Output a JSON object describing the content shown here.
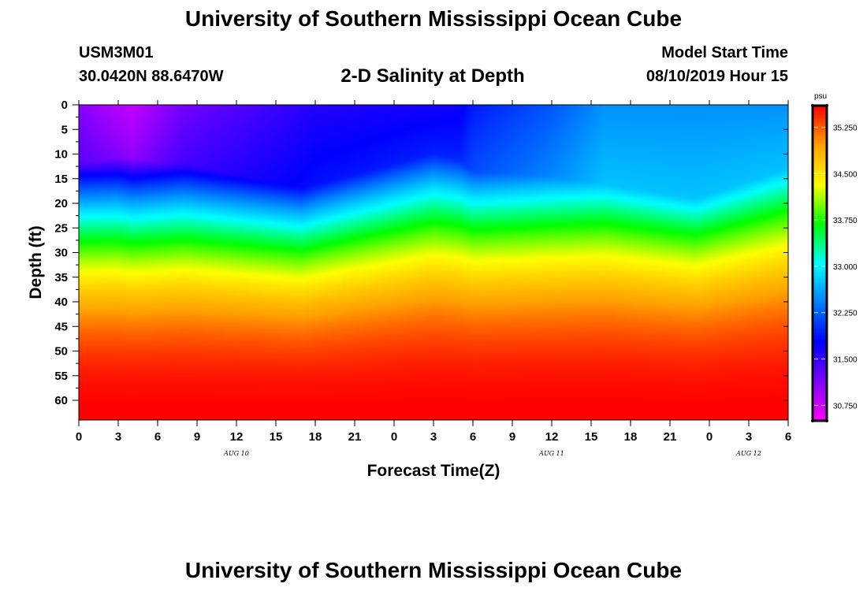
{
  "header": {
    "title": "University of Southern Mississippi Ocean Cube",
    "station_id": "USM3M01",
    "station_coords": "30.0420N 88.6470W",
    "plot_title": "2-D Salinity at Depth",
    "model_start_label": "Model Start Time",
    "model_start_value": "08/10/2019 Hour 15"
  },
  "footer": {
    "title": "University of Southern Mississippi Ocean Cube"
  },
  "chart_data": {
    "type": "heatmap",
    "title": "2-D Salinity at Depth",
    "xlabel": "Forecast Time(Z)",
    "ylabel": "Depth (ft)",
    "x_tick_labels": [
      "0",
      "3",
      "6",
      "9",
      "12",
      "15",
      "18",
      "21",
      "0",
      "3",
      "6",
      "9",
      "12",
      "15",
      "18",
      "21",
      "0",
      "3",
      "6"
    ],
    "x_range_hours": [
      0,
      54
    ],
    "date_labels": [
      {
        "text": "AUG 10",
        "hour": 12
      },
      {
        "text": "AUG 11",
        "hour": 36
      },
      {
        "text": "AUG 12",
        "hour": 51
      }
    ],
    "y_tick_labels": [
      "0",
      "5",
      "10",
      "15",
      "20",
      "25",
      "30",
      "35",
      "40",
      "45",
      "50",
      "55",
      "60"
    ],
    "ylim_ft": [
      0,
      64
    ],
    "y_inverted": true,
    "colorbar": {
      "unit": "psu",
      "min": 30.5,
      "max": 35.6,
      "tick_labels": [
        "35.250",
        "34.500",
        "33.750",
        "33.000",
        "32.250",
        "31.500",
        "30.750"
      ],
      "tick_values": [
        35.25,
        34.5,
        33.75,
        33.0,
        32.25,
        31.5,
        30.75
      ],
      "colors": [
        "#ff00ff",
        "#8000ff",
        "#0000ff",
        "#0080ff",
        "#00ffff",
        "#00ff00",
        "#ffff00",
        "#ffa000",
        "#ff0000"
      ]
    },
    "salinity_profile_psu": {
      "surface_layer": [
        {
          "hour": 0,
          "value": 31.1
        },
        {
          "hour": 4,
          "value": 30.8
        },
        {
          "hour": 8,
          "value": 31.2
        },
        {
          "hour": 18,
          "value": 31.6
        },
        {
          "hour": 29,
          "value": 31.7
        },
        {
          "hour": 30,
          "value": 31.9
        },
        {
          "hour": 36,
          "value": 32.2
        },
        {
          "hour": 40,
          "value": 32.5
        },
        {
          "hour": 54,
          "value": 32.5
        }
      ],
      "halocline_depth_ft": [
        {
          "hour": 0,
          "value": 15
        },
        {
          "hour": 3,
          "value": 13.5
        },
        {
          "hour": 8,
          "value": 15
        },
        {
          "hour": 17,
          "value": 20
        },
        {
          "hour": 27,
          "value": 13
        },
        {
          "hour": 29,
          "value": 14
        },
        {
          "hour": 30,
          "value": 16.5
        },
        {
          "hour": 36,
          "value": 17.5
        },
        {
          "hour": 42,
          "value": 20
        },
        {
          "hour": 47,
          "value": 22
        },
        {
          "hour": 54,
          "value": 16
        }
      ],
      "bottom_value": 35.6
    }
  }
}
